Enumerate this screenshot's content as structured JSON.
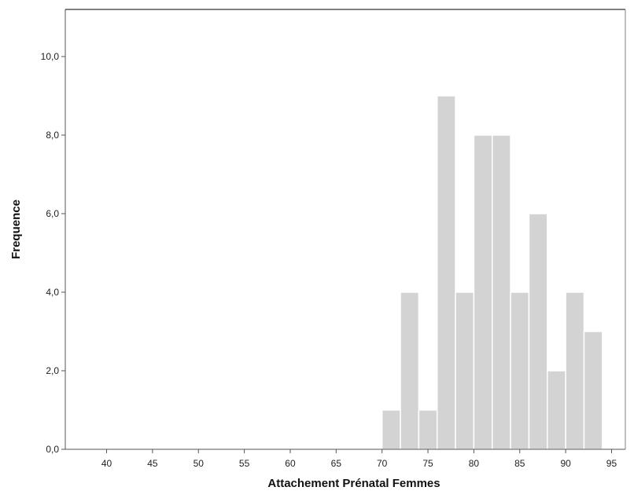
{
  "chart_data": {
    "type": "bar",
    "title": "",
    "xlabel": "Attachement Prénatal Femmes",
    "ylabel": "Frequence",
    "xlim": [
      35.5,
      96.5
    ],
    "ylim": [
      0,
      11.2
    ],
    "x_ticks": [
      40,
      45,
      50,
      55,
      60,
      65,
      70,
      75,
      80,
      85,
      90,
      95
    ],
    "x_tick_labels": [
      "40",
      "45",
      "50",
      "55",
      "60",
      "65",
      "70",
      "75",
      "80",
      "85",
      "90",
      "95"
    ],
    "y_ticks": [
      0,
      2,
      4,
      6,
      8,
      10
    ],
    "y_tick_labels": [
      "0,0",
      "2,0",
      "4,0",
      "6,0",
      "8,0",
      "10,0"
    ],
    "bin_width": 2,
    "bins": [
      {
        "x0": 70,
        "x1": 72,
        "count": 1
      },
      {
        "x0": 72,
        "x1": 74,
        "count": 4
      },
      {
        "x0": 74,
        "x1": 76,
        "count": 1
      },
      {
        "x0": 76,
        "x1": 78,
        "count": 9
      },
      {
        "x0": 78,
        "x1": 80,
        "count": 4
      },
      {
        "x0": 80,
        "x1": 82,
        "count": 8
      },
      {
        "x0": 82,
        "x1": 84,
        "count": 8
      },
      {
        "x0": 84,
        "x1": 86,
        "count": 4
      },
      {
        "x0": 86,
        "x1": 88,
        "count": 6
      },
      {
        "x0": 88,
        "x1": 90,
        "count": 2
      },
      {
        "x0": 90,
        "x1": 92,
        "count": 4
      },
      {
        "x0": 92,
        "x1": 94,
        "count": 3
      }
    ],
    "grid": false,
    "legend": "none",
    "colors": {
      "bar_fill": "#d3d3d3",
      "bar_stroke": "#ffffff",
      "axis": "#555555",
      "frame": "#808080"
    }
  }
}
